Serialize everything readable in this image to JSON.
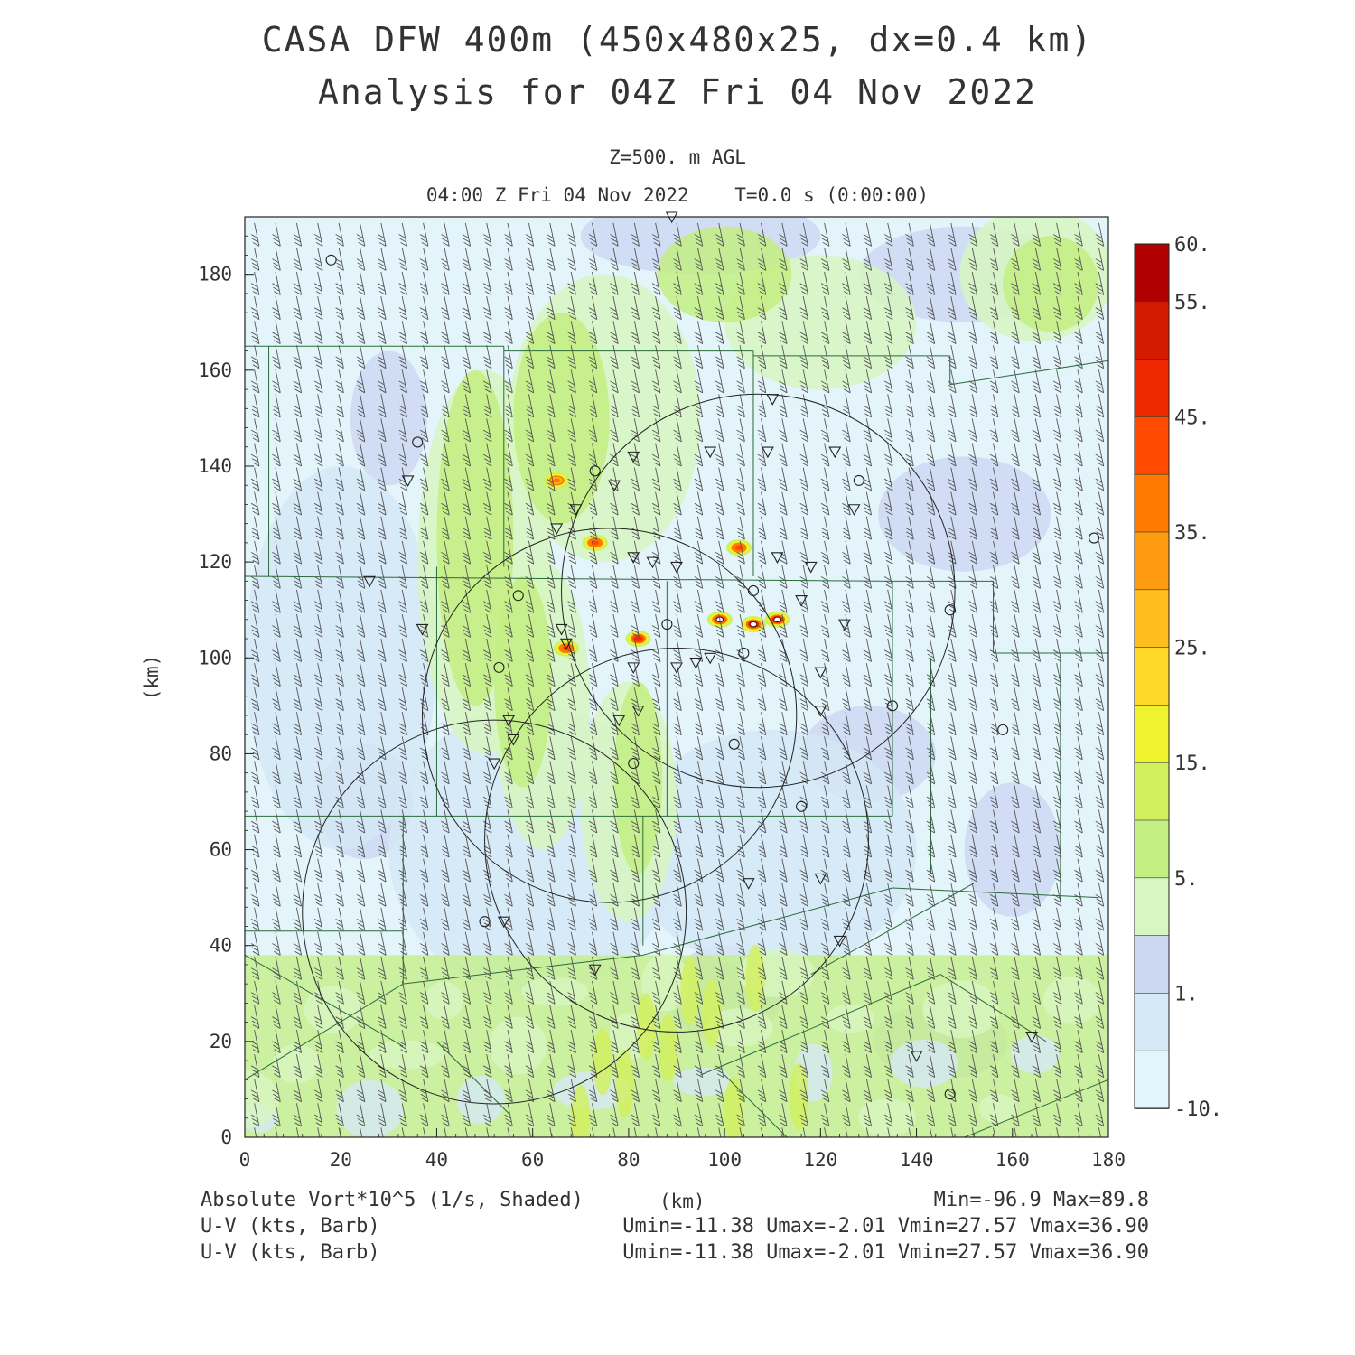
{
  "header": {
    "title_line1": "CASA DFW 400m (450x480x25, dx=0.4 km)",
    "title_line2": "Analysis for 04Z Fri 04 Nov 2022",
    "level": "Z=500. m AGL",
    "time_line": "04:00 Z Fri 04 Nov 2022    T=0.0 s (0:00:00)"
  },
  "footer": {
    "field_label": "Absolute Vort*10^5 (1/s, Shaded)",
    "xunit": "(km)",
    "minmax": "Min=-96.9 Max=89.8",
    "barb1_label": "U-V (kts, Barb)",
    "barb1_stats": "Umin=-11.38 Umax=-2.01 Vmin=27.57 Vmax=36.90",
    "barb2_label": "U-V (kts, Barb)",
    "barb2_stats": "Umin=-11.38 Umax=-2.01 Vmin=27.57 Vmax=36.90"
  },
  "chart_data": {
    "type": "heatmap",
    "title": "CASA DFW 400m (450x480x25, dx=0.4 km)",
    "xlabel": "(km)",
    "ylabel": "(km)",
    "xlim": [
      0,
      180
    ],
    "ylim": [
      0,
      192
    ],
    "xticks": [
      0,
      20,
      40,
      60,
      80,
      100,
      120,
      140,
      160,
      180
    ],
    "yticks": [
      0,
      20,
      40,
      60,
      80,
      100,
      120,
      140,
      160,
      180
    ],
    "field": "Absolute Vort*10^5 (1/s, Shaded)",
    "min": -96.9,
    "max": 89.8,
    "colorbar": {
      "labels": [
        "60.",
        "55.",
        "45.",
        "35.",
        "25.",
        "15.",
        "5.",
        "1.",
        "-10."
      ],
      "label_values": [
        60,
        55,
        45,
        35,
        25,
        15,
        5,
        1,
        -10
      ],
      "colors": [
        "#b00000",
        "#d41a00",
        "#ee2800",
        "#ff4a00",
        "#ff7a00",
        "#ff9b10",
        "#ffbd1e",
        "#ffd92a",
        "#eef32e",
        "#d2f05c",
        "#c3ef82",
        "#d7f6c1",
        "#ccd8f2",
        "#d5e8f6",
        "#e4f4fb"
      ]
    },
    "wind_barbs": {
      "units": "kts",
      "u_range": [
        -11.38,
        -2.01
      ],
      "v_range": [
        27.57,
        36.9
      ]
    },
    "range_rings": [
      {
        "center_km": [
          107,
          114
        ],
        "radius_km": 41
      },
      {
        "center_km": [
          76,
          88
        ],
        "radius_km": 39
      },
      {
        "center_km": [
          90,
          62
        ],
        "radius_km": 40
      },
      {
        "center_km": [
          52,
          47
        ],
        "radius_km": 40
      }
    ],
    "vorticity_maxima": [
      {
        "x_km": 106,
        "y_km": 107,
        "value": 60
      },
      {
        "x_km": 99,
        "y_km": 108,
        "value": 50
      },
      {
        "x_km": 111,
        "y_km": 108,
        "value": 55
      },
      {
        "x_km": 82,
        "y_km": 104,
        "value": 45
      },
      {
        "x_km": 67,
        "y_km": 102,
        "value": 40
      },
      {
        "x_km": 73,
        "y_km": 124,
        "value": 35
      },
      {
        "x_km": 103,
        "y_km": 123,
        "value": 35
      },
      {
        "x_km": 65,
        "y_km": 137,
        "value": 30
      }
    ],
    "station_markers_circle": [
      [
        18,
        183
      ],
      [
        36,
        145
      ],
      [
        73,
        139
      ],
      [
        128,
        137
      ],
      [
        57,
        113
      ],
      [
        106,
        114
      ],
      [
        147,
        110
      ],
      [
        53,
        98
      ],
      [
        88,
        107
      ],
      [
        104,
        101
      ],
      [
        102,
        82
      ],
      [
        135,
        90
      ],
      [
        158,
        85
      ],
      [
        81,
        78
      ],
      [
        116,
        69
      ],
      [
        50,
        45
      ],
      [
        147,
        9
      ],
      [
        177,
        125
      ]
    ],
    "station_markers_triangle": [
      [
        89,
        192
      ],
      [
        110,
        154
      ],
      [
        109,
        143
      ],
      [
        97,
        143
      ],
      [
        123,
        143
      ],
      [
        34,
        137
      ],
      [
        69,
        131
      ],
      [
        81,
        142
      ],
      [
        77,
        136
      ],
      [
        65,
        127
      ],
      [
        127,
        131
      ],
      [
        81,
        121
      ],
      [
        85,
        120
      ],
      [
        90,
        119
      ],
      [
        111,
        121
      ],
      [
        118,
        119
      ],
      [
        26,
        116
      ],
      [
        37,
        106
      ],
      [
        67,
        103
      ],
      [
        66,
        106
      ],
      [
        116,
        112
      ],
      [
        125,
        107
      ],
      [
        81,
        98
      ],
      [
        90,
        98
      ],
      [
        94,
        99
      ],
      [
        97,
        100
      ],
      [
        120,
        97
      ],
      [
        82,
        89
      ],
      [
        78,
        87
      ],
      [
        120,
        89
      ],
      [
        55,
        87
      ],
      [
        56,
        83
      ],
      [
        52,
        78
      ],
      [
        105,
        53
      ],
      [
        120,
        54
      ],
      [
        124,
        41
      ],
      [
        73,
        35
      ],
      [
        54,
        45
      ],
      [
        140,
        17
      ],
      [
        164,
        21
      ]
    ]
  }
}
